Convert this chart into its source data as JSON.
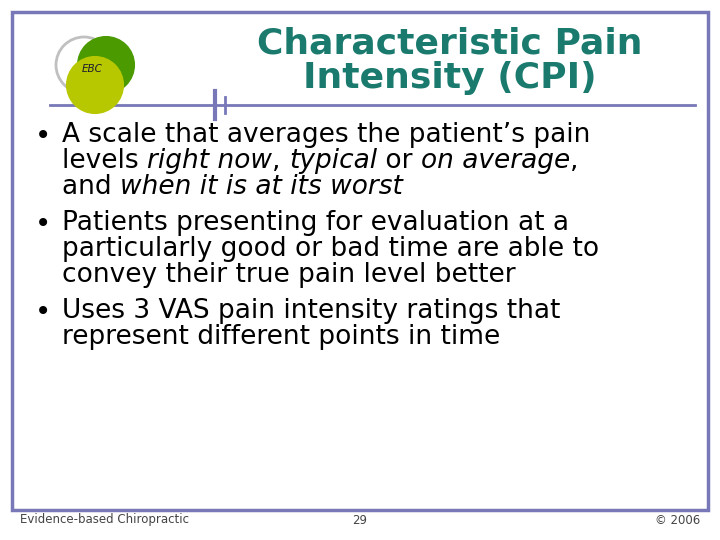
{
  "title_line1": "Characteristic Pain",
  "title_line2": "Intensity (CPI)",
  "title_color": "#1a7a6e",
  "background_color": "#ffffff",
  "border_color": "#7878b8",
  "title_fontsize": 26,
  "body_fontsize": 19,
  "footer_fontsize": 8.5,
  "bullet_char": "•",
  "bullet1_l1": "A scale that averages the patient’s pain",
  "bullet1_l2_pre": "levels ",
  "bullet1_l2_i1": "right now",
  "bullet1_l2_m1": ", ",
  "bullet1_l2_i2": "typical",
  "bullet1_l2_m2": " or ",
  "bullet1_l2_i3": "on average",
  "bullet1_l2_post": ",",
  "bullet1_l3_pre": "and ",
  "bullet1_l3_i": "when it is at its worst",
  "bullet2_l1": "Patients presenting for evaluation at a",
  "bullet2_l2": "particularly good or bad time are able to",
  "bullet2_l3": "convey their true pain level better",
  "bullet3_l1": "Uses 3 VAS pain intensity ratings that",
  "bullet3_l2": "represent different points in time",
  "footer_left": "Evidence-based Chiropractic",
  "footer_center": "29",
  "footer_right": "© 2006",
  "separator_color": "#7878b8",
  "logo_gray_color": "#c0c0c0",
  "logo_green_dark": "#4a9a00",
  "logo_green_light": "#b8c800",
  "logo_text": "EBC"
}
